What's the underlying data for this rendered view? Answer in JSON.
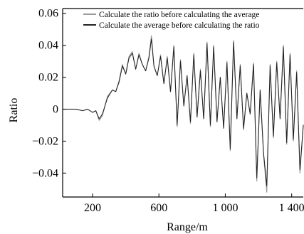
{
  "chart_data": {
    "type": "line",
    "xlabel": "Range/m",
    "ylabel": "Ratio",
    "xlim": [
      20,
      1470
    ],
    "ylim": [
      -0.055,
      0.063
    ],
    "x_ticks": [
      200,
      600,
      1000,
      1400
    ],
    "x_tick_labels": [
      "200",
      "600",
      "1 000",
      "1 400"
    ],
    "y_ticks": [
      0.06,
      0.04,
      0.02,
      0,
      -0.02,
      -0.04
    ],
    "y_tick_labels": [
      "0.06",
      "0.04",
      "0.02",
      "0",
      "−0.02",
      "−0.04"
    ],
    "grid": false,
    "legend_position": "top-right",
    "series": [
      {
        "name": "Calculate the ratio before calculating the average",
        "color": "#9a9a9a",
        "x": [
          20,
          100,
          140,
          170,
          200,
          220,
          240,
          260,
          290,
          320,
          340,
          360,
          380,
          400,
          420,
          440,
          460,
          480,
          500,
          520,
          540,
          555,
          570,
          590,
          610,
          630,
          650,
          670,
          690,
          710,
          730,
          750,
          770,
          790,
          810,
          830,
          850,
          870,
          890,
          910,
          930,
          950,
          970,
          990,
          1010,
          1030,
          1050,
          1070,
          1090,
          1110,
          1130,
          1150,
          1170,
          1190,
          1210,
          1230,
          1250,
          1270,
          1290,
          1310,
          1330,
          1350,
          1370,
          1390,
          1410,
          1430,
          1450,
          1470
        ],
        "values": [
          0.0,
          0.0,
          -0.001,
          0.0,
          -0.002,
          -0.001,
          -0.007,
          -0.004,
          0.008,
          0.012,
          0.011,
          0.018,
          0.028,
          0.022,
          0.033,
          0.036,
          0.025,
          0.035,
          0.028,
          0.024,
          0.033,
          0.046,
          0.027,
          0.021,
          0.034,
          0.016,
          0.033,
          0.011,
          0.04,
          -0.011,
          0.031,
          0.002,
          0.021,
          -0.009,
          0.035,
          -0.005,
          0.025,
          -0.006,
          0.042,
          -0.011,
          0.04,
          -0.008,
          0.02,
          -0.012,
          0.03,
          -0.026,
          0.043,
          -0.006,
          0.028,
          -0.013,
          0.01,
          -0.003,
          0.029,
          -0.045,
          0.012,
          -0.028,
          -0.052,
          0.028,
          -0.018,
          0.03,
          -0.006,
          0.04,
          -0.022,
          0.035,
          -0.02,
          0.024,
          -0.04,
          -0.01
        ]
      },
      {
        "name": "Calculate the average before calculating the ratio",
        "color": "#222222",
        "x": [
          20,
          100,
          140,
          170,
          200,
          220,
          240,
          260,
          290,
          320,
          340,
          360,
          380,
          400,
          420,
          440,
          460,
          480,
          500,
          520,
          540,
          555,
          570,
          590,
          610,
          630,
          650,
          670,
          690,
          710,
          730,
          750,
          770,
          790,
          810,
          830,
          850,
          870,
          890,
          910,
          930,
          950,
          970,
          990,
          1010,
          1030,
          1050,
          1070,
          1090,
          1110,
          1130,
          1150,
          1170,
          1190,
          1210,
          1230,
          1250,
          1270,
          1290,
          1310,
          1330,
          1350,
          1370,
          1390,
          1410,
          1430,
          1450,
          1470
        ],
        "values": [
          0.0,
          0.0,
          -0.001,
          0.0,
          -0.002,
          -0.001,
          -0.006,
          -0.003,
          0.007,
          0.012,
          0.011,
          0.017,
          0.027,
          0.022,
          0.032,
          0.035,
          0.025,
          0.034,
          0.028,
          0.024,
          0.032,
          0.044,
          0.027,
          0.021,
          0.033,
          0.016,
          0.032,
          0.011,
          0.039,
          -0.01,
          0.03,
          0.002,
          0.021,
          -0.008,
          0.034,
          -0.005,
          0.024,
          -0.006,
          0.041,
          -0.01,
          0.039,
          -0.008,
          0.02,
          -0.012,
          0.029,
          -0.025,
          0.042,
          -0.006,
          0.027,
          -0.012,
          0.01,
          -0.003,
          0.028,
          -0.043,
          0.012,
          -0.027,
          -0.048,
          0.027,
          -0.017,
          0.029,
          -0.006,
          0.039,
          -0.021,
          0.034,
          -0.019,
          0.023,
          -0.038,
          -0.01
        ]
      }
    ]
  }
}
